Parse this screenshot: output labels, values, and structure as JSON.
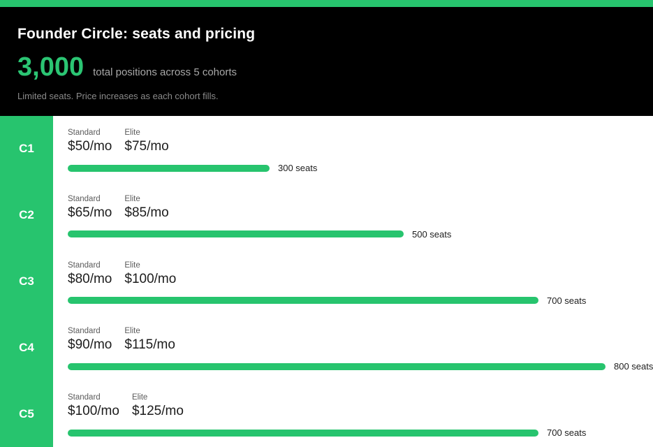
{
  "colors": {
    "accent_green": "#27c46e",
    "stat_green": "#2bc573",
    "header_background": "#000000",
    "content_background": "#ffffff"
  },
  "header": {
    "title": "Founder Circle: seats and pricing",
    "stat_value": "3,000",
    "stat_caption": "total positions across 5 cohorts",
    "tagline": "Limited seats. Price increases as each cohort fills."
  },
  "chart_data": {
    "type": "bar",
    "title": "Founder Circle: seats and pricing",
    "total_positions": 3000,
    "cohort_count": 5,
    "categories": [
      "C1",
      "C2",
      "C3",
      "C4",
      "C5"
    ],
    "series": [
      {
        "name": "Standard price",
        "values": [
          "$50/mo",
          "$65/mo",
          "$80/mo",
          "$90/mo",
          "$100/mo"
        ]
      },
      {
        "name": "Elite price",
        "values": [
          "$75/mo",
          "$85/mo",
          "$100/mo",
          "$115/mo",
          "$125/mo"
        ]
      },
      {
        "name": "Seats",
        "values": [
          300,
          500,
          700,
          800,
          700
        ]
      }
    ],
    "bar_scale_max": 800,
    "orientation": "horizontal",
    "grid": false,
    "legend": false,
    "value_label_suffix": " seats"
  },
  "rows": [
    {
      "cohort": "C1",
      "standard_label": "Standard",
      "standard_price": "$50/mo",
      "elite_label": "Elite",
      "elite_price": "$75/mo",
      "seats": 300,
      "seats_label": "300 seats"
    },
    {
      "cohort": "C2",
      "standard_label": "Standard",
      "standard_price": "$65/mo",
      "elite_label": "Elite",
      "elite_price": "$85/mo",
      "seats": 500,
      "seats_label": "500 seats"
    },
    {
      "cohort": "C3",
      "standard_label": "Standard",
      "standard_price": "$80/mo",
      "elite_label": "Elite",
      "elite_price": "$100/mo",
      "seats": 700,
      "seats_label": "700 seats"
    },
    {
      "cohort": "C4",
      "standard_label": "Standard",
      "standard_price": "$90/mo",
      "elite_label": "Elite",
      "elite_price": "$115/mo",
      "seats": 800,
      "seats_label": "800 seats"
    },
    {
      "cohort": "C5",
      "standard_label": "Standard",
      "standard_price": "$100/mo",
      "elite_label": "Elite",
      "elite_price": "$125/mo",
      "seats": 700,
      "seats_label": "700 seats"
    }
  ]
}
